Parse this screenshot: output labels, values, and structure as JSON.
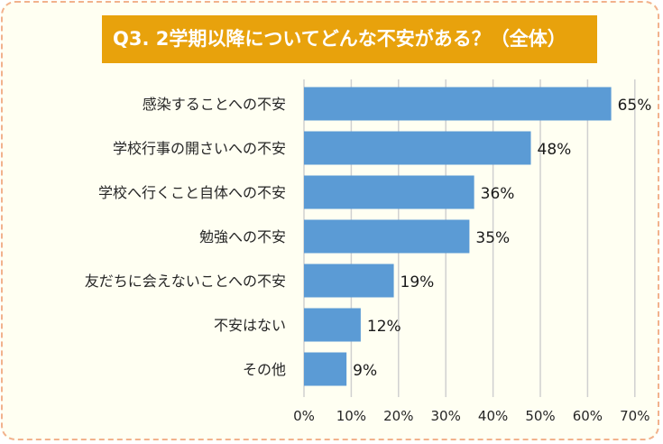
{
  "chart_data": {
    "type": "bar",
    "orientation": "horizontal",
    "title": "Q3. 2学期以降についてどんな不安がある？（全体）",
    "categories": [
      "感染することへの不安",
      "学校行事の開さいへの不安",
      "学校へ行くこと自体への不安",
      "勉強への不安",
      "友だちに会えないことへの不安",
      "不安はない",
      "その他"
    ],
    "values": [
      65,
      48,
      36,
      35,
      19,
      12,
      9
    ],
    "value_labels": [
      "65%",
      "48%",
      "36%",
      "35%",
      "19%",
      "12%",
      "9%"
    ],
    "xlim": [
      0,
      70
    ],
    "xticks": [
      "0%",
      "10%",
      "20%",
      "30%",
      "40%",
      "50%",
      "60%",
      "70%"
    ],
    "grid": "vertical",
    "legend": "none",
    "colors": {
      "bar": "#5b9bd5",
      "title_bg": "#e8a20c",
      "title_text": "#ffffff",
      "background": "#fffff2",
      "border": "#f2b28c",
      "grid": "#d0d0d0"
    }
  }
}
